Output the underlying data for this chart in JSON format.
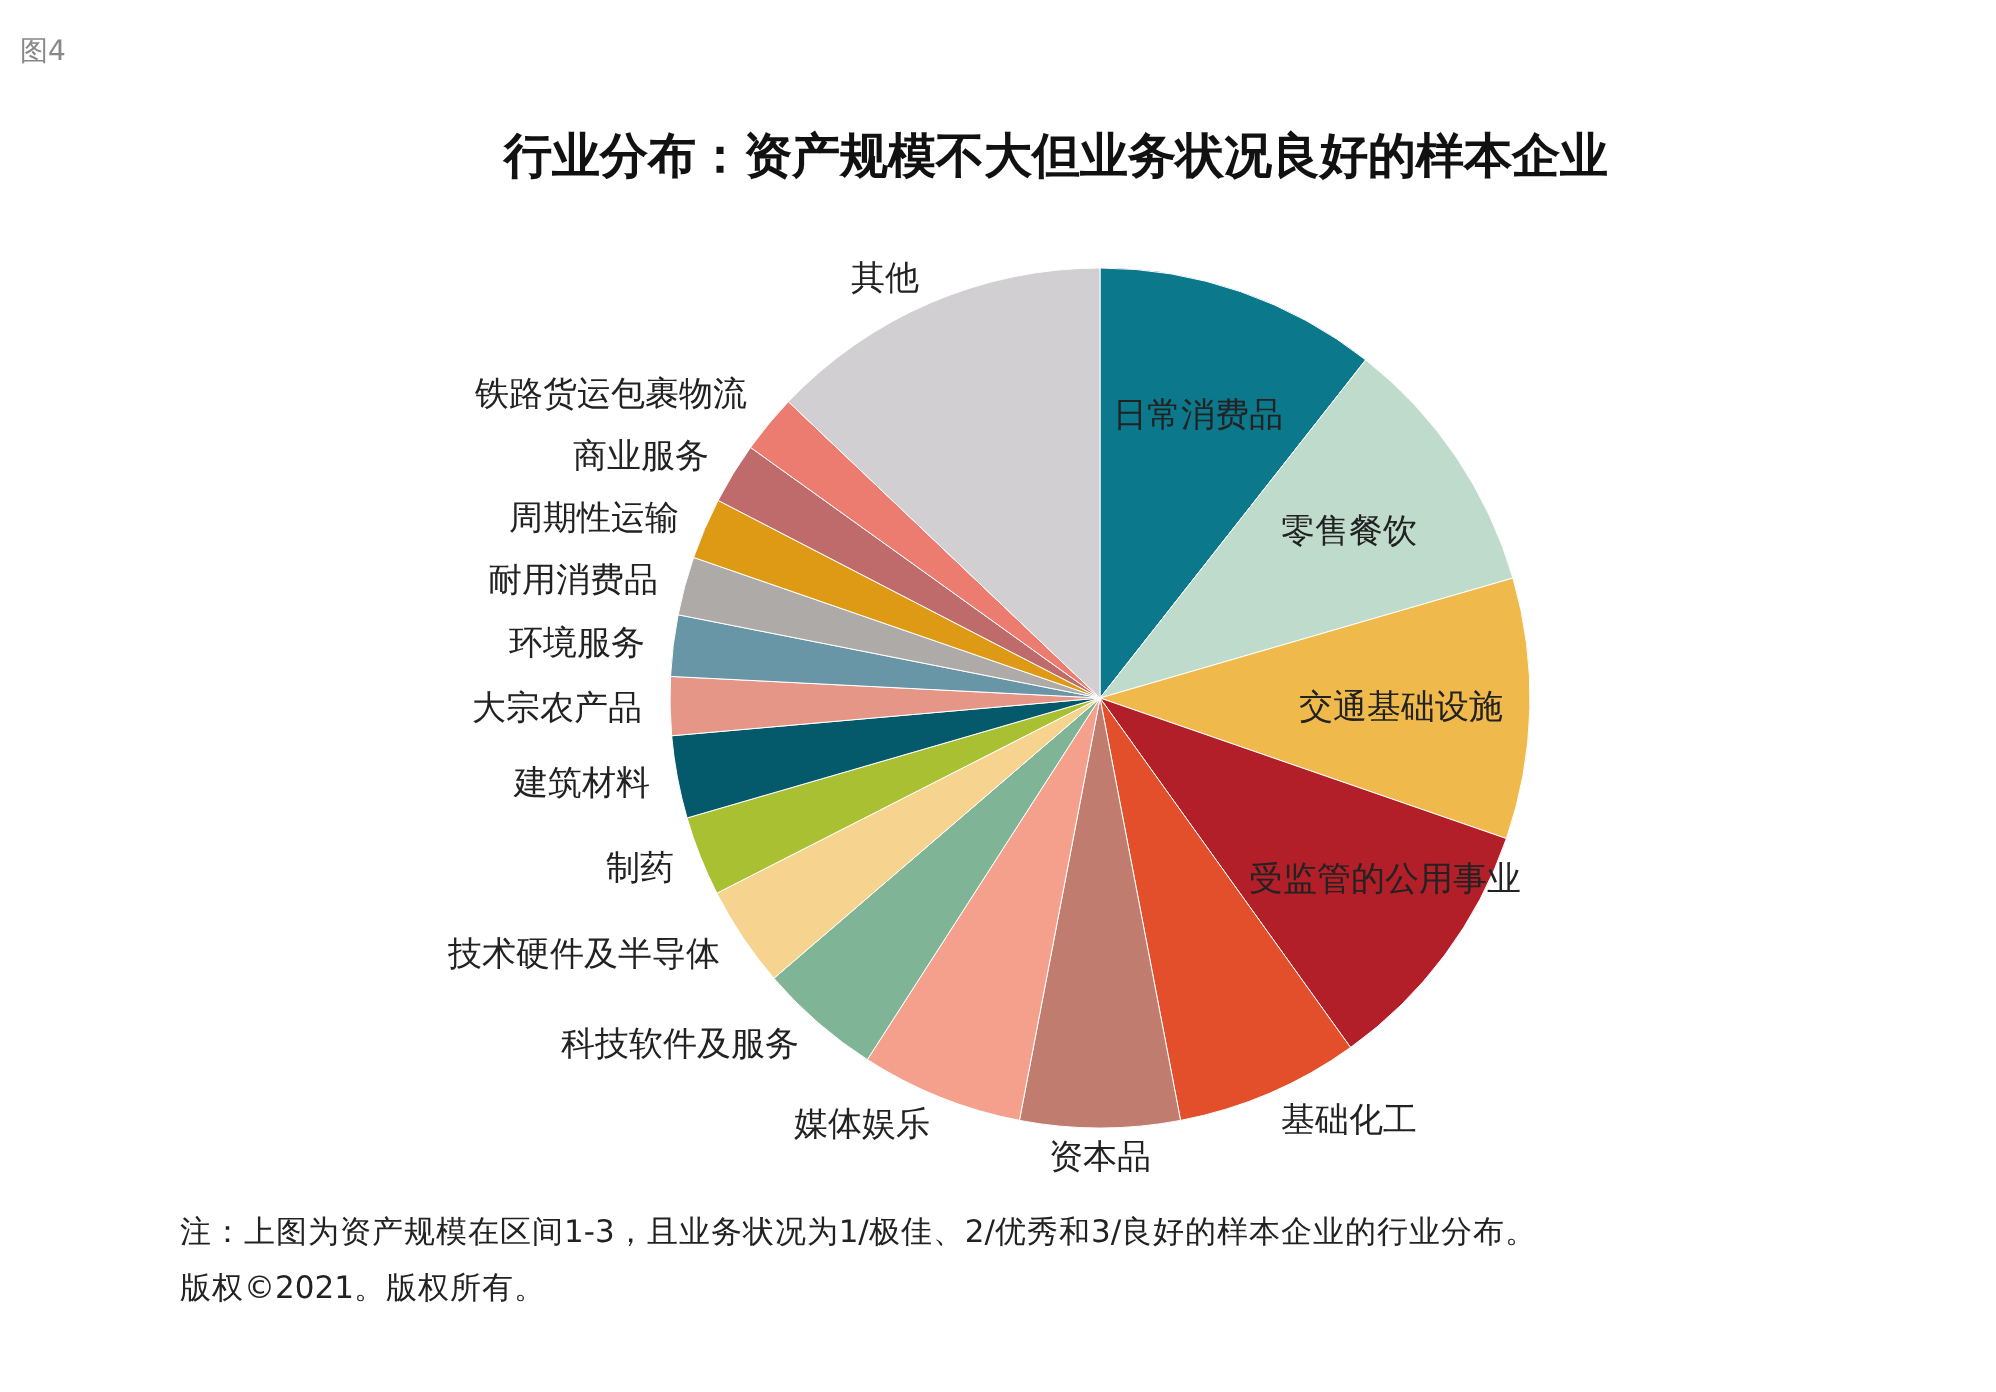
{
  "chart_data": {
    "type": "pie",
    "title": "行业分布：资产规模不大但业务状况良好的样本企业",
    "categories": [
      "日常消费品",
      "零售餐饮",
      "交通基础设施",
      "受监管的公用事业",
      "基础化工",
      "资本品",
      "媒体娱乐",
      "科技软件及服务",
      "技术硬件及半导体",
      "制药",
      "建筑材料",
      "大宗农产品",
      "环境服务",
      "耐用消费品",
      "周期性运输",
      "商业服务",
      "铁路货运包裹物流",
      "其他"
    ],
    "values": [
      10.6,
      9.9,
      9.8,
      9.8,
      6.9,
      6.0,
      6.1,
      4.6,
      3.8,
      3.0,
      3.1,
      2.2,
      2.3,
      2.2,
      2.3,
      2.3,
      2.2,
      12.9
    ],
    "colors": [
      "#0b788c",
      "#bfdbcc",
      "#f0b94c",
      "#b21f28",
      "#e34f2a",
      "#c07c6e",
      "#f4a08c",
      "#7fb596",
      "#f6d38f",
      "#a8c032",
      "#045a6a",
      "#e69686",
      "#6896a6",
      "#adaaa8",
      "#de9a14",
      "#c06b6b",
      "#ec7b70",
      "#d1cfd1"
    ],
    "annotations": [
      "图4",
      "注：上图为资产规模在区间1-3，且业务状况为1/极佳、2/优秀和3/良好的样本企业的行业分布。",
      "版权©2021。版权所有。"
    ]
  }
}
